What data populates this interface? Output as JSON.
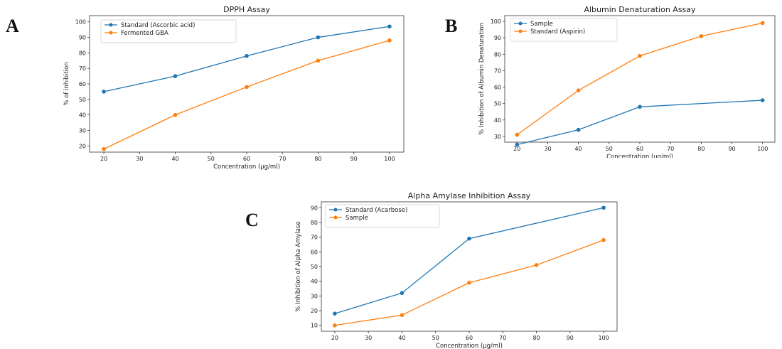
{
  "panels": [
    {
      "letter": "A"
    },
    {
      "letter": "B"
    },
    {
      "letter": "C"
    }
  ],
  "colors": {
    "blue": "#1f77b4",
    "orange": "#ff7f0e"
  },
  "chart_data": [
    {
      "type": "line",
      "title": "DPPH Assay",
      "xlabel": "Concentration (µg/ml)",
      "ylabel": "% of inhibition",
      "x": [
        20,
        40,
        60,
        80,
        100
      ],
      "xlim": [
        20,
        100
      ],
      "xticks": [
        20,
        30,
        40,
        50,
        60,
        70,
        80,
        90,
        100
      ],
      "ylim": [
        20,
        100
      ],
      "yticks": [
        20,
        30,
        40,
        50,
        60,
        70,
        80,
        90,
        100
      ],
      "legend_position": "top-left",
      "grid": false,
      "series": [
        {
          "name": "Standard (Ascorbic acid)",
          "color": "#1f77b4",
          "values": [
            55,
            65,
            78,
            90,
            97
          ]
        },
        {
          "name": "Fermented GBA",
          "color": "#ff7f0e",
          "values": [
            18,
            40,
            58,
            75,
            88
          ]
        }
      ]
    },
    {
      "type": "line",
      "title": "Albumin Denaturation Assay",
      "xlabel": "Concentration (µg/ml)",
      "ylabel": "% Inhibition of Albumin Denaturation",
      "x": [
        20,
        40,
        60,
        80,
        100
      ],
      "xlim": [
        20,
        100
      ],
      "xticks": [
        20,
        30,
        40,
        50,
        60,
        70,
        80,
        90,
        100
      ],
      "ylim": [
        30,
        100
      ],
      "yticks": [
        30,
        40,
        50,
        60,
        70,
        80,
        90,
        100
      ],
      "legend_position": "top-left",
      "grid": false,
      "series": [
        {
          "name": "Sample",
          "color": "#1f77b4",
          "values": [
            25,
            34,
            48,
            null,
            52
          ]
        },
        {
          "name": "Standard (Aspirin)",
          "color": "#ff7f0e",
          "values": [
            31,
            58,
            79,
            91,
            99
          ]
        }
      ]
    },
    {
      "type": "line",
      "title": "Alpha Amylase Inhibition Assay",
      "xlabel": "Concentration (µg/ml)",
      "ylabel": "% Inhibition of Alpha Amylase",
      "x": [
        20,
        40,
        60,
        80,
        100
      ],
      "xlim": [
        20,
        100
      ],
      "xticks": [
        20,
        30,
        40,
        50,
        60,
        70,
        80,
        90,
        100
      ],
      "ylim": [
        10,
        90
      ],
      "yticks": [
        10,
        20,
        30,
        40,
        50,
        60,
        70,
        80,
        90
      ],
      "legend_position": "top-left",
      "grid": false,
      "series": [
        {
          "name": "Standard (Acarbose)",
          "color": "#1f77b4",
          "values": [
            18,
            32,
            69,
            null,
            90
          ]
        },
        {
          "name": "Sample",
          "color": "#ff7f0e",
          "values": [
            10,
            17,
            39,
            51,
            68
          ]
        }
      ]
    }
  ]
}
